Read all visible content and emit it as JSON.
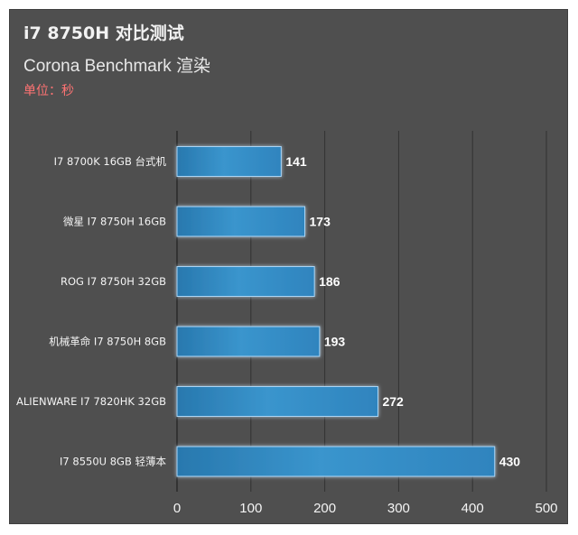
{
  "header": {
    "title": "i7 8750H 对比测试",
    "subtitle": "Corona Benchmark 渲染",
    "unit": "单位：秒"
  },
  "colors": {
    "background": "#4f4f4f",
    "bar": "#2f84be",
    "bar_highlight": "#45a2d8",
    "glow": "#cfe8ff",
    "unit_text": "#ff7373"
  },
  "chart_data": {
    "type": "bar",
    "orientation": "horizontal",
    "title": "i7 8750H 对比测试",
    "subtitle": "Corona Benchmark 渲染",
    "unit": "单位：秒",
    "categories": [
      "I7 8700K 16GB 台式机",
      "微星 I7 8750H 16GB",
      "ROG I7 8750H 32GB",
      "机械革命 I7 8750H 8GB",
      "ALIENWARE I7 7820HK 32GB",
      "I7 8550U 8GB 轻薄本"
    ],
    "values": [
      141,
      173,
      186,
      193,
      272,
      430
    ],
    "xlim": [
      0,
      500
    ],
    "xticks": [
      0,
      100,
      200,
      300,
      400,
      500
    ],
    "grid": "vertical",
    "legend": "none"
  }
}
